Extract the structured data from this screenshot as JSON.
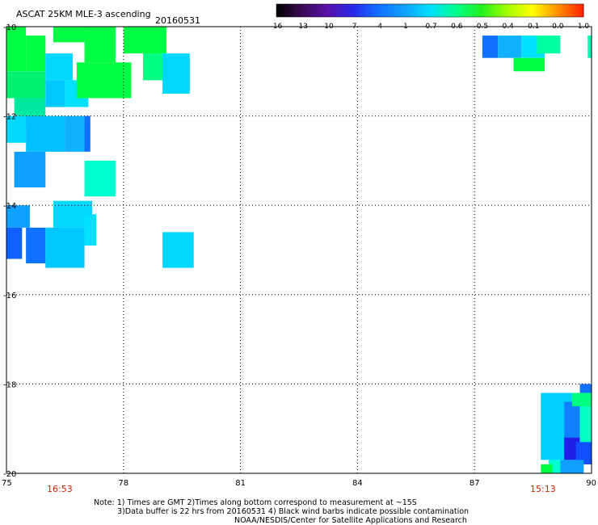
{
  "header": {
    "title": "ASCAT 25KM MLE-3 ascending",
    "date": "20160531"
  },
  "colorbar": {
    "labels": [
      "-16",
      "-13",
      "-10",
      "-7",
      "-4",
      "-1",
      "-0.7",
      "-0.6",
      "-0.5",
      "-0.4",
      "-0.1",
      "0.0",
      "1.0"
    ],
    "colors": [
      "#000000",
      "#3a0a55",
      "#5a10a8",
      "#2828e8",
      "#1070ff",
      "#10a0ff",
      "#00e0ff",
      "#00ff90",
      "#20f020",
      "#a0ff00",
      "#ffff00",
      "#ff9000",
      "#ff2000"
    ]
  },
  "chart_data": {
    "type": "heatmap",
    "xlim": [
      75,
      90
    ],
    "ylim": [
      -20,
      -10
    ],
    "x_ticks": [
      "75",
      "78",
      "81",
      "84",
      "87",
      "90"
    ],
    "y_ticks": [
      "-10",
      "-12",
      "-14",
      "-16",
      "-18",
      "-20"
    ],
    "grid": true,
    "cells": [
      {
        "lon": 75.0,
        "lat": -10.0,
        "w": 0.5,
        "h": 1.0,
        "color": "#00ff44"
      },
      {
        "lon": 75.5,
        "lat": -10.2,
        "w": 0.5,
        "h": 0.8,
        "color": "#00ff44"
      },
      {
        "lon": 75.0,
        "lat": -11.0,
        "w": 1.0,
        "h": 0.6,
        "color": "#00f070"
      },
      {
        "lon": 75.2,
        "lat": -11.6,
        "w": 0.8,
        "h": 0.6,
        "color": "#00e8a0"
      },
      {
        "lon": 76.0,
        "lat": -10.6,
        "w": 0.7,
        "h": 0.6,
        "color": "#00d8ff"
      },
      {
        "lon": 76.0,
        "lat": -11.2,
        "w": 0.5,
        "h": 0.6,
        "color": "#00c8ff"
      },
      {
        "lon": 76.5,
        "lat": -11.2,
        "w": 0.6,
        "h": 0.6,
        "color": "#00e0ff"
      },
      {
        "lon": 75.0,
        "lat": -12.0,
        "w": 0.5,
        "h": 0.6,
        "color": "#00d8ff"
      },
      {
        "lon": 75.5,
        "lat": -12.0,
        "w": 1.0,
        "h": 0.8,
        "color": "#00c0ff"
      },
      {
        "lon": 76.5,
        "lat": -12.0,
        "w": 0.5,
        "h": 0.8,
        "color": "#10b0ff"
      },
      {
        "lon": 77.0,
        "lat": -12.0,
        "w": 0.15,
        "h": 0.8,
        "color": "#1070ff"
      },
      {
        "lon": 75.2,
        "lat": -12.8,
        "w": 0.8,
        "h": 0.8,
        "color": "#10a0ff"
      },
      {
        "lon": 77.0,
        "lat": -13.0,
        "w": 0.8,
        "h": 0.8,
        "color": "#00ffd0"
      },
      {
        "lon": 76.2,
        "lat": -10.0,
        "w": 0.8,
        "h": 0.35,
        "color": "#00ff44"
      },
      {
        "lon": 77.0,
        "lat": -10.0,
        "w": 0.8,
        "h": 0.8,
        "color": "#00ff44"
      },
      {
        "lon": 76.8,
        "lat": -10.8,
        "w": 1.4,
        "h": 0.8,
        "color": "#00ff44"
      },
      {
        "lon": 78.0,
        "lat": -10.0,
        "w": 1.1,
        "h": 0.6,
        "color": "#00ff44"
      },
      {
        "lon": 78.5,
        "lat": -10.6,
        "w": 0.5,
        "h": 0.6,
        "color": "#00ff80"
      },
      {
        "lon": 79.0,
        "lat": -10.6,
        "w": 0.7,
        "h": 0.9,
        "color": "#00d8ff"
      },
      {
        "lon": 75.0,
        "lat": -14.0,
        "w": 0.6,
        "h": 0.5,
        "color": "#10a0ff"
      },
      {
        "lon": 75.0,
        "lat": -14.5,
        "w": 0.4,
        "h": 0.7,
        "color": "#1060ff"
      },
      {
        "lon": 75.5,
        "lat": -14.5,
        "w": 0.5,
        "h": 0.8,
        "color": "#1070ff"
      },
      {
        "lon": 76.0,
        "lat": -14.5,
        "w": 1.0,
        "h": 0.9,
        "color": "#00c8ff"
      },
      {
        "lon": 76.2,
        "lat": -13.9,
        "w": 1.0,
        "h": 0.6,
        "color": "#00d8ff"
      },
      {
        "lon": 77.0,
        "lat": -14.2,
        "w": 0.3,
        "h": 0.7,
        "color": "#00e0ff"
      },
      {
        "lon": 79.0,
        "lat": -14.6,
        "w": 0.8,
        "h": 0.8,
        "color": "#00d8ff"
      },
      {
        "lon": 87.2,
        "lat": -10.2,
        "w": 0.4,
        "h": 0.5,
        "color": "#1070ff"
      },
      {
        "lon": 87.6,
        "lat": -10.2,
        "w": 0.6,
        "h": 0.5,
        "color": "#10b0ff"
      },
      {
        "lon": 88.2,
        "lat": -10.2,
        "w": 0.6,
        "h": 0.5,
        "color": "#00e0ff"
      },
      {
        "lon": 88.6,
        "lat": -10.2,
        "w": 0.6,
        "h": 0.4,
        "color": "#00ffa0"
      },
      {
        "lon": 88.0,
        "lat": -10.7,
        "w": 0.8,
        "h": 0.3,
        "color": "#00ff44"
      },
      {
        "lon": 89.9,
        "lat": -10.2,
        "w": 0.1,
        "h": 0.5,
        "color": "#00ffb0"
      },
      {
        "lon": 88.7,
        "lat": -18.2,
        "w": 0.8,
        "h": 1.5,
        "color": "#00d0ff"
      },
      {
        "lon": 89.3,
        "lat": -18.4,
        "w": 0.4,
        "h": 1.2,
        "color": "#1080ff"
      },
      {
        "lon": 89.7,
        "lat": -18.4,
        "w": 0.3,
        "h": 1.2,
        "color": "#00ffc0"
      },
      {
        "lon": 89.5,
        "lat": -18.2,
        "w": 0.5,
        "h": 0.3,
        "color": "#00ff80"
      },
      {
        "lon": 89.7,
        "lat": -18.0,
        "w": 0.3,
        "h": 0.2,
        "color": "#1070ff"
      },
      {
        "lon": 89.3,
        "lat": -19.2,
        "w": 0.4,
        "h": 0.5,
        "color": "#2020e8"
      },
      {
        "lon": 89.6,
        "lat": -19.3,
        "w": 0.4,
        "h": 0.5,
        "color": "#1050ff"
      },
      {
        "lon": 88.9,
        "lat": -19.7,
        "w": 0.5,
        "h": 0.3,
        "color": "#00ffd0"
      },
      {
        "lon": 89.2,
        "lat": -19.7,
        "w": 0.6,
        "h": 0.3,
        "color": "#10a0ff"
      },
      {
        "lon": 88.7,
        "lat": -19.8,
        "w": 0.3,
        "h": 0.2,
        "color": "#00ff44"
      }
    ]
  },
  "time_labels": {
    "left": "16:53",
    "right": "15:13"
  },
  "notes": {
    "line1": "Note: 1) Times are GMT 2)Times along bottom correspond to measurement at ~15S",
    "line2": "3)Data buffer is 22 hrs from 20160531 4) Black wind barbs indicate possible contamination",
    "line3": "NOAA/NESDIS/Center for Satellite Applications and Research"
  }
}
